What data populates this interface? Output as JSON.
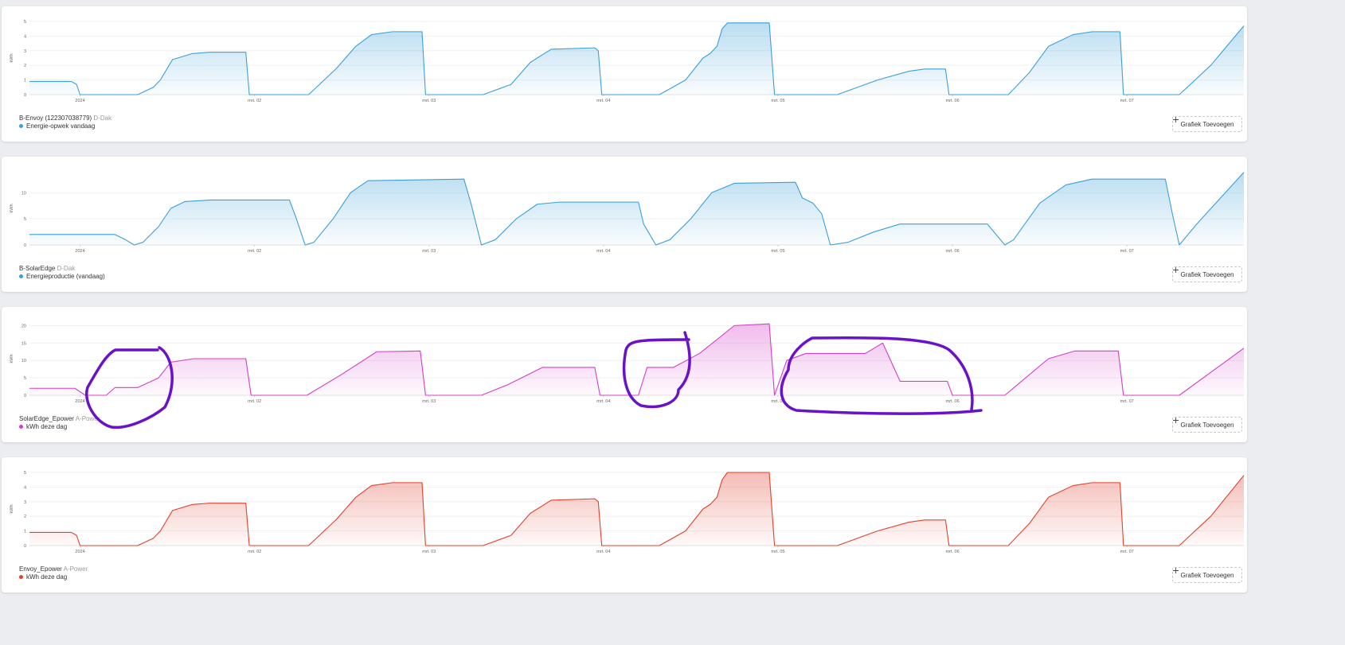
{
  "chart_data": [
    {
      "type": "area",
      "title": "B-Envoy (122307038779)",
      "subtitle": "D-Dak",
      "ylabel": "kWh",
      "button": "Grafiek Toevoegen",
      "x": [
        -0.29,
        -0.05,
        -0.02,
        0.0,
        0.33,
        0.42,
        0.46,
        0.53,
        0.64,
        0.74,
        0.95,
        0.97,
        1.31,
        1.47,
        1.58,
        1.67,
        1.79,
        1.96,
        1.98,
        2.31,
        2.47,
        2.58,
        2.7,
        2.95,
        2.97,
        2.99,
        3.32,
        3.47,
        3.57,
        3.61,
        3.65,
        3.68,
        3.71,
        3.95,
        3.98,
        4.34,
        4.57,
        4.75,
        4.84,
        4.96,
        4.98,
        5.32,
        5.44,
        5.55,
        5.69,
        5.8,
        5.96,
        5.98,
        6.3,
        6.48,
        6.67
      ],
      "series": [
        {
          "name": "Energie-opwek vandaag",
          "color": "#3b9fd8",
          "values": [
            0.9,
            0.9,
            0.7,
            0,
            0,
            0.5,
            1.0,
            2.4,
            2.8,
            2.9,
            2.9,
            0,
            0,
            1.8,
            3.3,
            4.1,
            4.3,
            4.3,
            0,
            0,
            0.7,
            2.2,
            3.1,
            3.2,
            3.0,
            0,
            0,
            1.0,
            2.5,
            2.8,
            3.3,
            4.5,
            4.9,
            4.9,
            0,
            0,
            1.0,
            1.6,
            1.75,
            1.75,
            0,
            0,
            1.5,
            3.3,
            4.1,
            4.3,
            4.3,
            0,
            0,
            2.0,
            4.7
          ]
        }
      ],
      "xlim": [
        -0.29,
        6.67
      ],
      "xticks": [
        {
          "value": 0,
          "label": "2024"
        },
        {
          "value": 1,
          "label": "mrt. 02"
        },
        {
          "value": 2,
          "label": "mrt. 03"
        },
        {
          "value": 3,
          "label": "mrt. 04"
        },
        {
          "value": 4,
          "label": "mrt. 05"
        },
        {
          "value": 5,
          "label": "mrt. 06"
        },
        {
          "value": 6,
          "label": "mrt. 07"
        }
      ],
      "ylim": [
        0,
        5
      ],
      "yticks": [
        0,
        1,
        2,
        3,
        4,
        5
      ],
      "grid": true
    },
    {
      "type": "area",
      "title": "B-SolarEdge",
      "subtitle": "D-Dak",
      "ylabel": "kWh",
      "button": "Grafiek Toevoegen",
      "x": [
        -0.29,
        0.2,
        0.26,
        0.31,
        0.36,
        0.45,
        0.52,
        0.6,
        0.75,
        1.2,
        1.24,
        1.29,
        1.34,
        1.45,
        1.55,
        1.65,
        2.2,
        2.24,
        2.3,
        2.38,
        2.5,
        2.62,
        2.75,
        3.2,
        3.23,
        3.3,
        3.38,
        3.5,
        3.62,
        3.75,
        4.1,
        4.14,
        4.2,
        4.25,
        4.3,
        4.4,
        4.55,
        4.7,
        5.2,
        5.25,
        5.3,
        5.35,
        5.5,
        5.65,
        5.8,
        6.22,
        6.26,
        6.3,
        6.4,
        6.67
      ],
      "series": [
        {
          "name": "Energieproductie (vandaag)",
          "color": "#3b9fd8",
          "values": [
            2,
            2,
            1,
            0,
            0.5,
            3.5,
            7,
            8.3,
            8.6,
            8.6,
            5,
            0,
            0.5,
            5,
            10,
            12.3,
            12.6,
            8,
            0,
            1,
            5,
            7.8,
            8.2,
            8.2,
            4,
            0,
            1,
            5,
            10,
            11.8,
            12,
            9,
            8,
            6,
            0,
            0.5,
            2.5,
            4,
            4,
            2,
            0,
            1,
            8,
            11.5,
            12.6,
            12.6,
            6,
            0,
            4,
            13.9
          ]
        }
      ],
      "xlim": [
        -0.29,
        6.67
      ],
      "xticks": [
        {
          "value": 0,
          "label": "2024"
        },
        {
          "value": 1,
          "label": "mrt. 02"
        },
        {
          "value": 2,
          "label": "mrt. 03"
        },
        {
          "value": 3,
          "label": "mrt. 04"
        },
        {
          "value": 4,
          "label": "mrt. 05"
        },
        {
          "value": 5,
          "label": "mrt. 06"
        },
        {
          "value": 6,
          "label": "mrt. 07"
        }
      ],
      "ylim": [
        0,
        14
      ],
      "yticks": [
        0,
        5,
        10
      ],
      "grid": true
    },
    {
      "type": "area",
      "title": "SolarEdge_Epower",
      "subtitle": "A-Power",
      "ylabel": "kWh",
      "button": "Grafiek Toevoegen",
      "x": [
        -0.29,
        -0.03,
        0.03,
        0.15,
        0.2,
        0.33,
        0.45,
        0.52,
        0.65,
        0.95,
        0.98,
        1.3,
        1.5,
        1.7,
        1.95,
        1.98,
        2.3,
        2.45,
        2.65,
        2.95,
        2.98,
        3.2,
        3.25,
        3.4,
        3.55,
        3.75,
        3.95,
        3.98,
        4.05,
        4.16,
        4.5,
        4.6,
        4.7,
        4.97,
        5.0,
        5.3,
        5.55,
        5.7,
        5.95,
        5.98,
        6.3,
        6.67
      ],
      "series": [
        {
          "name": "kWh deze dag",
          "color": "#d43fc6",
          "values": [
            2,
            2,
            0,
            0,
            2.2,
            2.2,
            5,
            9.5,
            10.5,
            10.5,
            0,
            0,
            6,
            12.5,
            12.7,
            0,
            0,
            3,
            8,
            8,
            0,
            0,
            8,
            8,
            12,
            20,
            20.5,
            0,
            10,
            12,
            12,
            15,
            4,
            4,
            0,
            0,
            10.5,
            12.7,
            12.7,
            0,
            0,
            13.5
          ]
        }
      ],
      "xlim": [
        -0.29,
        6.67
      ],
      "xticks": [
        {
          "value": 0,
          "label": "2024"
        },
        {
          "value": 1,
          "label": "mrt. 02"
        },
        {
          "value": 2,
          "label": "mrt. 03"
        },
        {
          "value": 3,
          "label": "mrt. 04"
        },
        {
          "value": 4,
          "label": "mrt. 05"
        },
        {
          "value": 5,
          "label": "mrt. 06"
        },
        {
          "value": 6,
          "label": "mrt. 07"
        }
      ],
      "ylim": [
        0,
        21
      ],
      "yticks": [
        0,
        5,
        10,
        15,
        20
      ],
      "grid": true
    },
    {
      "type": "area",
      "title": "Envoy_Epower",
      "subtitle": "A-Power",
      "ylabel": "kWh",
      "button": "Grafiek Toevoegen",
      "x": [
        -0.29,
        -0.05,
        -0.02,
        0.0,
        0.33,
        0.42,
        0.46,
        0.53,
        0.64,
        0.74,
        0.95,
        0.97,
        1.31,
        1.47,
        1.58,
        1.67,
        1.79,
        1.96,
        1.98,
        2.31,
        2.47,
        2.58,
        2.7,
        2.95,
        2.97,
        2.99,
        3.32,
        3.47,
        3.57,
        3.61,
        3.65,
        3.68,
        3.71,
        3.95,
        3.98,
        4.34,
        4.57,
        4.75,
        4.84,
        4.96,
        4.98,
        5.32,
        5.44,
        5.55,
        5.69,
        5.8,
        5.96,
        5.98,
        6.3,
        6.48,
        6.67
      ],
      "series": [
        {
          "name": "kWh deze dag",
          "color": "#e0402e",
          "values": [
            0.9,
            0.9,
            0.7,
            0,
            0,
            0.5,
            1.0,
            2.4,
            2.8,
            2.9,
            2.9,
            0,
            0,
            1.8,
            3.3,
            4.1,
            4.3,
            4.3,
            0,
            0,
            0.7,
            2.2,
            3.1,
            3.2,
            3.0,
            0,
            0,
            1.0,
            2.5,
            2.8,
            3.3,
            4.5,
            5.0,
            5.0,
            0,
            0,
            1.0,
            1.6,
            1.75,
            1.75,
            0,
            0,
            1.5,
            3.3,
            4.1,
            4.3,
            4.3,
            0,
            0,
            2.0,
            4.8
          ]
        }
      ],
      "xlim": [
        -0.29,
        6.67
      ],
      "xticks": [
        {
          "value": 0,
          "label": "2024"
        },
        {
          "value": 1,
          "label": "mrt. 02"
        },
        {
          "value": 2,
          "label": "mrt. 03"
        },
        {
          "value": 3,
          "label": "mrt. 04"
        },
        {
          "value": 4,
          "label": "mrt. 05"
        },
        {
          "value": 5,
          "label": "mrt. 06"
        },
        {
          "value": 6,
          "label": "mrt. 07"
        }
      ],
      "ylim": [
        0,
        5
      ],
      "yticks": [
        0,
        1,
        2,
        3,
        4,
        5
      ],
      "grid": true
    }
  ]
}
